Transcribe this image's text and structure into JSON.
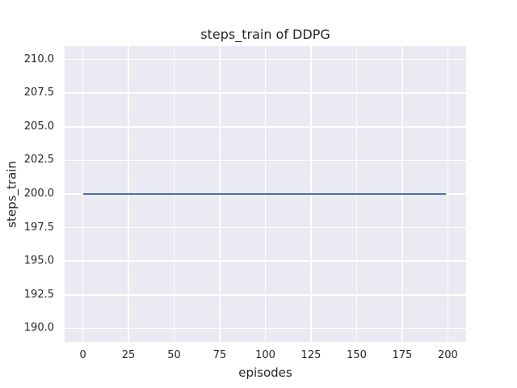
{
  "chart_data": {
    "type": "line",
    "title": "steps_train of DDPG",
    "xlabel": "episodes",
    "ylabel": "steps_train",
    "xlim": [
      -10,
      210
    ],
    "ylim": [
      189,
      211
    ],
    "xticks": [
      0,
      25,
      50,
      75,
      100,
      125,
      150,
      175,
      200
    ],
    "yticks": [
      210.0,
      207.5,
      205.0,
      202.5,
      200.0,
      197.5,
      195.0,
      192.5,
      190.0
    ],
    "ytick_labels": [
      "210.0",
      "207.5",
      "205.0",
      "202.5",
      "200.0",
      "197.5",
      "195.0",
      "192.5",
      "190.0"
    ],
    "grid": true,
    "legend": false,
    "style": {
      "figure_background": "#FFFFFF",
      "plot_background": "#EAEAF2",
      "grid_color": "#FFFFFF",
      "text_color": "#262626"
    },
    "series": [
      {
        "name": "steps_train",
        "color": "#4C72B0",
        "x": [
          0,
          199
        ],
        "y": [
          200,
          200
        ]
      }
    ]
  }
}
